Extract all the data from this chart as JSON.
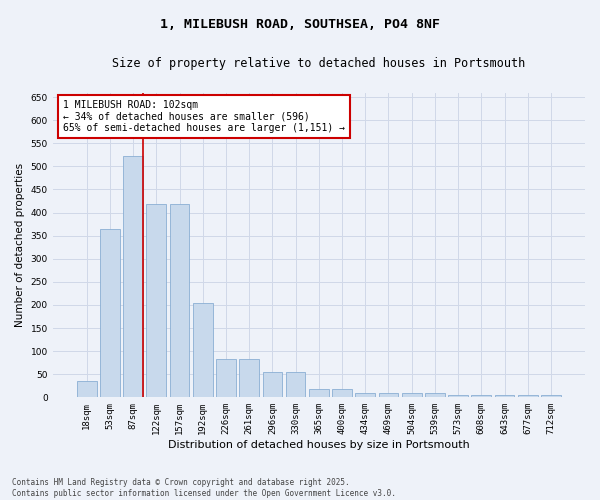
{
  "title_line1": "1, MILEBUSH ROAD, SOUTHSEA, PO4 8NF",
  "title_line2": "Size of property relative to detached houses in Portsmouth",
  "xlabel": "Distribution of detached houses by size in Portsmouth",
  "ylabel": "Number of detached properties",
  "categories": [
    "18sqm",
    "53sqm",
    "87sqm",
    "122sqm",
    "157sqm",
    "192sqm",
    "226sqm",
    "261sqm",
    "296sqm",
    "330sqm",
    "365sqm",
    "400sqm",
    "434sqm",
    "469sqm",
    "504sqm",
    "539sqm",
    "573sqm",
    "608sqm",
    "643sqm",
    "677sqm",
    "712sqm"
  ],
  "values": [
    35,
    365,
    522,
    418,
    418,
    205,
    84,
    84,
    55,
    55,
    18,
    18,
    10,
    9,
    9,
    9,
    5,
    4,
    4,
    4,
    5
  ],
  "bar_color": "#c8d9ec",
  "bar_edge_color": "#8aafd4",
  "grid_color": "#d0d8e8",
  "background_color": "#eef2f9",
  "vline_x_idx": 2,
  "vline_color": "#cc0000",
  "annotation_text": "1 MILEBUSH ROAD: 102sqm\n← 34% of detached houses are smaller (596)\n65% of semi-detached houses are larger (1,151) →",
  "annotation_box_color": "#ffffff",
  "annotation_box_edge": "#cc0000",
  "ylim_max": 660,
  "yticks": [
    0,
    50,
    100,
    150,
    200,
    250,
    300,
    350,
    400,
    450,
    500,
    550,
    600,
    650
  ],
  "footnote": "Contains HM Land Registry data © Crown copyright and database right 2025.\nContains public sector information licensed under the Open Government Licence v3.0.",
  "title_fontsize": 9.5,
  "subtitle_fontsize": 8.5,
  "xlabel_fontsize": 8,
  "ylabel_fontsize": 7.5,
  "tick_fontsize": 6.5,
  "annot_fontsize": 7,
  "footnote_fontsize": 5.5
}
